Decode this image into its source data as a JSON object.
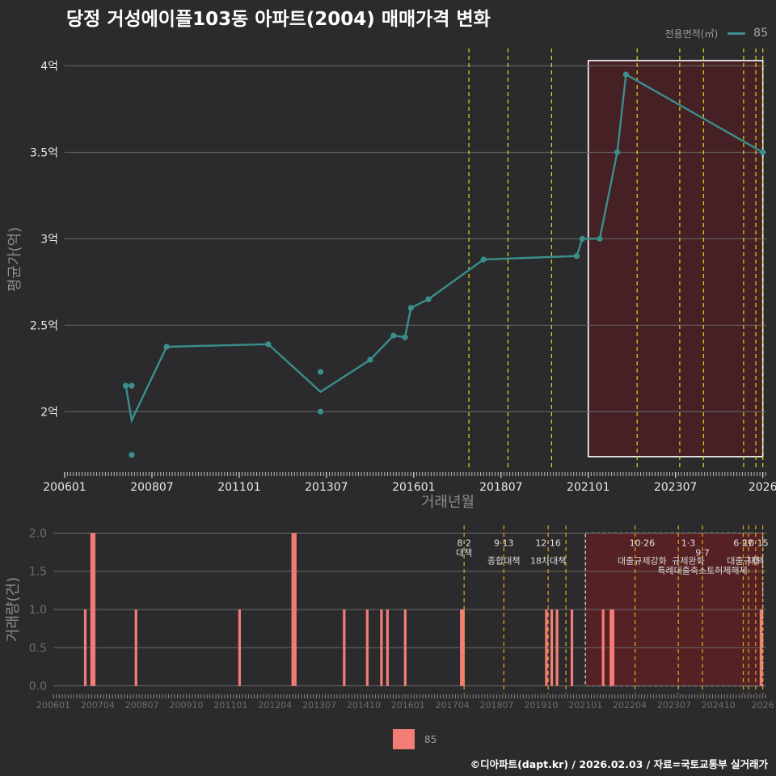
{
  "title": "당정 거성에이플103동 아파트(2004) 매매가격 변화",
  "legend_top": {
    "title": "전용면적(㎡)",
    "label": "85"
  },
  "legend_bottom": {
    "label": "85"
  },
  "footer": "©디아파트(dapt.kr) / 2026.02.03 / 자료=국토교통부 실거래가",
  "colors": {
    "background": "#2b2b2d",
    "line": "#3a8f8c",
    "bar": "#f47c76",
    "policy": "#e6d619",
    "highlight": "#4a1f25"
  },
  "chart_data": [
    {
      "type": "line",
      "name": "price",
      "title": "",
      "xlabel": "거래년월",
      "ylabel": "평균가(억)",
      "xlim": [
        2006.0,
        2026.1
      ],
      "ylim": [
        1.66,
        4.1
      ],
      "x_ticks": [
        "200601",
        "200807",
        "201101",
        "201307",
        "201601",
        "201807",
        "202101",
        "202307",
        "2026"
      ],
      "y_ticks": [
        {
          "v": 2,
          "label": "2억"
        },
        {
          "v": 2.5,
          "label": "2.5억"
        },
        {
          "v": 3,
          "label": "3억"
        },
        {
          "v": 3.5,
          "label": "3.5억"
        },
        {
          "v": 4,
          "label": "4억"
        }
      ],
      "series": [
        {
          "name": "85",
          "line": [
            {
              "x": 2007.75,
              "y": 2.15
            },
            {
              "x": 2007.92,
              "y": 1.95
            },
            {
              "x": 2008.92,
              "y": 2.375
            },
            {
              "x": 2011.83,
              "y": 2.39
            },
            {
              "x": 2013.33,
              "y": 2.115
            },
            {
              "x": 2014.75,
              "y": 2.3
            },
            {
              "x": 2015.42,
              "y": 2.44
            },
            {
              "x": 2015.75,
              "y": 2.43
            },
            {
              "x": 2015.92,
              "y": 2.6
            },
            {
              "x": 2016.42,
              "y": 2.65
            },
            {
              "x": 2018.0,
              "y": 2.88
            },
            {
              "x": 2020.67,
              "y": 2.9
            },
            {
              "x": 2020.83,
              "y": 3.0
            },
            {
              "x": 2021.33,
              "y": 3.0
            },
            {
              "x": 2021.83,
              "y": 3.5
            },
            {
              "x": 2022.08,
              "y": 3.95
            },
            {
              "x": 2026.0,
              "y": 3.5
            }
          ],
          "points": [
            {
              "x": 2007.75,
              "y": 2.15
            },
            {
              "x": 2007.92,
              "y": 2.15
            },
            {
              "x": 2007.92,
              "y": 1.75
            },
            {
              "x": 2008.92,
              "y": 2.375
            },
            {
              "x": 2011.83,
              "y": 2.39
            },
            {
              "x": 2013.33,
              "y": 2.23
            },
            {
              "x": 2013.33,
              "y": 2.0
            },
            {
              "x": 2014.75,
              "y": 2.3
            },
            {
              "x": 2015.42,
              "y": 2.44
            },
            {
              "x": 2015.75,
              "y": 2.43
            },
            {
              "x": 2015.92,
              "y": 2.6
            },
            {
              "x": 2016.42,
              "y": 2.65
            },
            {
              "x": 2018.0,
              "y": 2.88
            },
            {
              "x": 2020.67,
              "y": 2.9
            },
            {
              "x": 2020.83,
              "y": 3.0
            },
            {
              "x": 2021.33,
              "y": 3.0
            },
            {
              "x": 2021.83,
              "y": 3.5
            },
            {
              "x": 2022.08,
              "y": 3.95
            },
            {
              "x": 2026.0,
              "y": 3.5
            }
          ]
        }
      ],
      "policy_lines": [
        2017.58,
        2018.7,
        2019.95,
        2022.4,
        2023.62,
        2024.3,
        2025.45,
        2025.8,
        2026.0
      ],
      "highlight": {
        "x0": 2021.0,
        "x1": 2026.0,
        "y0": 1.74,
        "y1": 4.03
      }
    },
    {
      "type": "bar",
      "name": "volume",
      "title": "",
      "xlabel": "",
      "ylabel": "거래량(건)",
      "xlim": [
        2006.0,
        2026.1
      ],
      "ylim": [
        -0.1,
        2.1
      ],
      "x_ticks": [
        "200601",
        "200704",
        "200807",
        "200910",
        "201101",
        "201204",
        "201307",
        "201410",
        "201601",
        "201704",
        "201807",
        "201910",
        "202101",
        "202204",
        "202307",
        "202410",
        "2026"
      ],
      "y_ticks": [
        {
          "v": 0,
          "label": "0.0"
        },
        {
          "v": 0.5,
          "label": "0.5"
        },
        {
          "v": 1,
          "label": "1.0"
        },
        {
          "v": 1.5,
          "label": "1.5"
        },
        {
          "v": 2,
          "label": "2.0"
        }
      ],
      "bars": [
        {
          "x": 2006.9,
          "v": 1
        },
        {
          "x": 2007.08,
          "v": 2
        },
        {
          "x": 2007.15,
          "v": 2
        },
        {
          "x": 2008.33,
          "v": 1
        },
        {
          "x": 2011.25,
          "v": 1
        },
        {
          "x": 2012.75,
          "v": 2
        },
        {
          "x": 2012.82,
          "v": 2
        },
        {
          "x": 2014.2,
          "v": 1
        },
        {
          "x": 2014.85,
          "v": 1
        },
        {
          "x": 2015.25,
          "v": 1
        },
        {
          "x": 2015.42,
          "v": 1
        },
        {
          "x": 2015.92,
          "v": 1
        },
        {
          "x": 2017.5,
          "v": 1
        },
        {
          "x": 2017.56,
          "v": 1
        },
        {
          "x": 2019.9,
          "v": 1
        },
        {
          "x": 2020.05,
          "v": 1
        },
        {
          "x": 2020.2,
          "v": 1
        },
        {
          "x": 2020.62,
          "v": 1
        },
        {
          "x": 2021.5,
          "v": 1
        },
        {
          "x": 2021.72,
          "v": 1
        },
        {
          "x": 2021.78,
          "v": 1
        },
        {
          "x": 2025.95,
          "v": 1
        }
      ],
      "policy_lines": [
        2017.58,
        2018.7,
        2019.95,
        2020.45,
        2022.4,
        2023.62,
        2024.3,
        2025.45,
        2025.6,
        2025.8,
        2026.0
      ],
      "highlight": {
        "x0": 2021.0,
        "x1": 2026.0,
        "y0": 0.0,
        "y1": 2.0
      },
      "annotations": [
        {
          "x": 2017.58,
          "date": "8·2",
          "text": "대책"
        },
        {
          "x": 2018.7,
          "date": "9·13",
          "text": "종합대책"
        },
        {
          "x": 2019.95,
          "date": "12·16",
          "text": "18차대책"
        },
        {
          "x": 2022.6,
          "date": "10·26",
          "text": "대출규제강화"
        },
        {
          "x": 2023.9,
          "date": "1·3",
          "text": "규제완화"
        },
        {
          "x": 2024.3,
          "date": "9·7",
          "text": "특례대출축소토허제해제"
        },
        {
          "x": 2025.45,
          "date": "6·27",
          "text": "대출규제"
        },
        {
          "x": 2025.8,
          "date": "10·15",
          "text": "대책"
        }
      ]
    }
  ]
}
